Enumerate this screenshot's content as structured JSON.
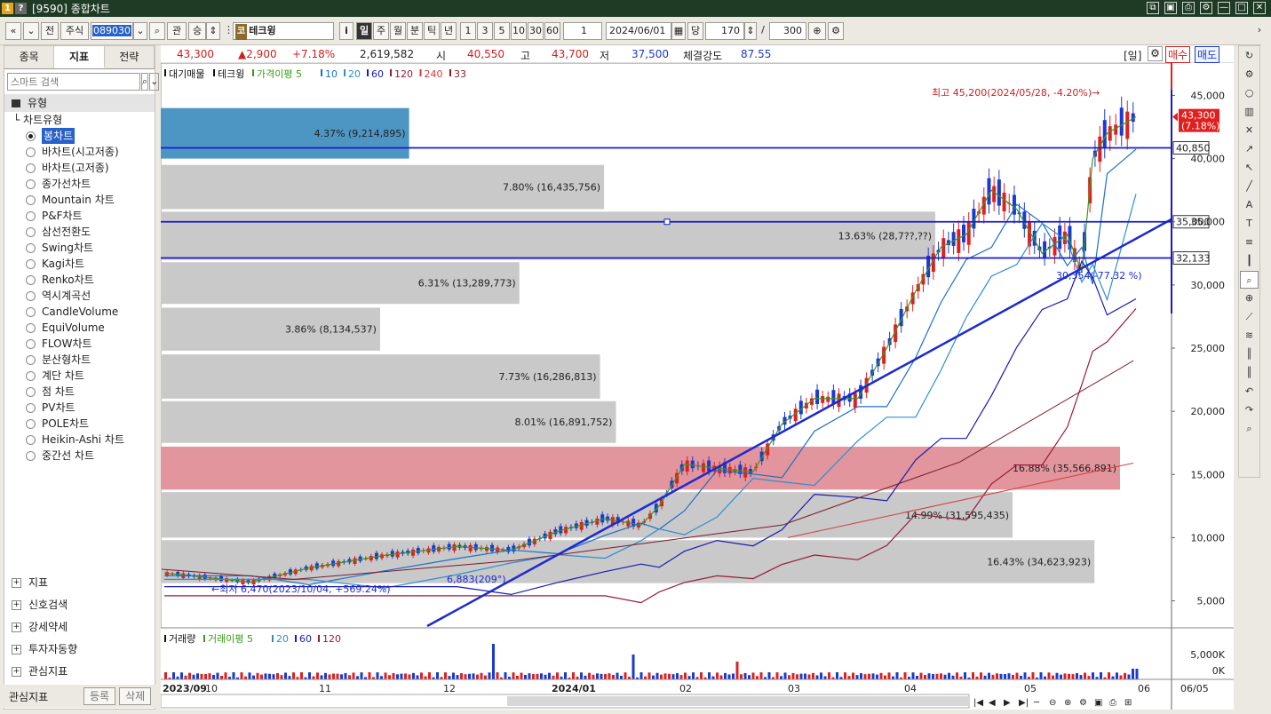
{
  "window": {
    "title": "[9590] 종합차트"
  },
  "toolbar": {
    "back": "전",
    "market": "주식",
    "code": "089030",
    "kwan": "관",
    "seung": "승",
    "stock_name_badge": "코",
    "stock_name": "테크윙",
    "info": "i",
    "periods": [
      "일",
      "주",
      "월",
      "분",
      "틱",
      "년"
    ],
    "active_period": "일",
    "minutes": [
      "1",
      "3",
      "5",
      "10",
      "30",
      "60"
    ],
    "interval": "1",
    "date": "2024/06/01",
    "dang": "당",
    "count": "170",
    "slash": "/",
    "total": "300"
  },
  "left_panel": {
    "tabs": [
      "종목",
      "지표",
      "전략"
    ],
    "active_tab": "지표",
    "search_placeholder": "스마트 검색",
    "section": "유형",
    "tree_root": "차트유형",
    "chart_types": [
      "봉차트",
      "바차트(시고저종)",
      "바차트(고저종)",
      "종가선차트",
      "Mountain 차트",
      "P&F차트",
      "삼선전환도",
      "Swing차트",
      "Kagi차트",
      "Renko차트",
      "역시계곡선",
      "CandleVolume",
      "EquiVolume",
      "FLOW차트",
      "분산형차트",
      "계단 차트",
      "점 차트",
      "PV차트",
      "POLE차트",
      "Heikin-Ashi 차트",
      "중간선 차트"
    ],
    "selected_type": "봉차트",
    "groups": [
      "지표",
      "신호검색",
      "강세약세",
      "투자자동향",
      "관심지표"
    ],
    "footer_label": "관심지표",
    "footer_buttons": [
      "등록",
      "삭제"
    ]
  },
  "price_bar": {
    "price": "43,300",
    "change": "▲2,900",
    "pct": "+7.18%",
    "volume": "2,619,582",
    "open_label": "시",
    "open": "40,550",
    "high_label": "고",
    "high": "43,700",
    "low_label": "저",
    "low": "37,500",
    "strength_label": "체결강도",
    "strength": "87.55",
    "period_tag": "[일]",
    "buy": "매수",
    "sell": "매도"
  },
  "legend": {
    "items": [
      {
        "text": "대기매물",
        "color": "#111111"
      },
      {
        "text": "테크윙",
        "color": "#111111"
      },
      {
        "text": "가격이평 5",
        "color": "#3a9a1a"
      },
      {
        "text": "10",
        "color": "#1a70c8"
      },
      {
        "text": "20",
        "color": "#2d8fd0"
      },
      {
        "text": "60",
        "color": "#1a1ab4"
      },
      {
        "text": "120",
        "color": "#9a1a3a"
      },
      {
        "text": "240",
        "color": "#d43a3a"
      },
      {
        "text": "33",
        "color": "#8a1a1a"
      }
    ]
  },
  "annotations": {
    "high": "최고 45,200(2024/05/28, -4.20%)→",
    "low": "←최저 6,470(2023/10/04, +569.24%)",
    "trend_angle": "6,883(209°)",
    "hline_low": "30,354(-77.32 %)"
  },
  "horizontal_lines": [
    {
      "price": 40850,
      "label": "40,850"
    },
    {
      "price": 35000,
      "label": "35,000"
    },
    {
      "price": 32133,
      "label": "32,133"
    }
  ],
  "current_price_box": {
    "price": "43,300",
    "pct": "(7.18%)"
  },
  "y_ticks": [
    "45,000",
    "40,000",
    "35,000",
    "30,000",
    "25,000",
    "20,000",
    "15,000",
    "10,000",
    "5,000"
  ],
  "volume_panel": {
    "legend": [
      {
        "text": "거래량",
        "color": "#111111"
      },
      {
        "text": "거래이평 5",
        "color": "#3a9a1a"
      },
      {
        "text": "20",
        "color": "#2d8fd0"
      },
      {
        "text": "60",
        "color": "#1a1ab4"
      },
      {
        "text": "120",
        "color": "#9a1a3a"
      }
    ],
    "y_ticks": [
      "5,000K",
      "0K"
    ]
  },
  "x_ticks": [
    "2023/09",
    "10",
    "11",
    "12",
    "2024/01",
    "02",
    "03",
    "04",
    "05",
    "06"
  ],
  "x_end_label": "06/05",
  "chart_data": {
    "type": "volume_profile",
    "volume_profile": [
      {
        "pct": "4.37%",
        "volume": "9,214,895",
        "low": 40000,
        "high": 44000,
        "highlight": "blue"
      },
      {
        "pct": "7.80%",
        "volume": "16,435,756",
        "low": 36000,
        "high": 39500,
        "highlight": "none"
      },
      {
        "pct": "13.63%",
        "volume": "28,7??,??",
        "low": 32000,
        "high": 35800,
        "highlight": "none"
      },
      {
        "pct": "6.31%",
        "volume": "13,289,773",
        "low": 28500,
        "high": 31800,
        "highlight": "none"
      },
      {
        "pct": "3.86%",
        "volume": "8,134,537",
        "low": 24800,
        "high": 28200,
        "highlight": "none"
      },
      {
        "pct": "7.73%",
        "volume": "16,286,813",
        "low": 21000,
        "high": 24500,
        "highlight": "none"
      },
      {
        "pct": "8.01%",
        "volume": "16,891,752",
        "low": 17500,
        "high": 20800,
        "highlight": "none"
      },
      {
        "pct": "16.88%",
        "volume": "35,566,891",
        "low": 13800,
        "high": 17200,
        "highlight": "red"
      },
      {
        "pct": "14.99%",
        "volume": "31,595,435",
        "low": 10000,
        "high": 13600,
        "highlight": "none"
      },
      {
        "pct": "16.43%",
        "volume": "34,623,923",
        "low": 6400,
        "high": 9800,
        "highlight": "none"
      }
    ],
    "close_series": [
      {
        "d": "2023/09/10",
        "c": 7200
      },
      {
        "d": "2023/10/04",
        "c": 6470
      },
      {
        "d": "2023/10/20",
        "c": 7600
      },
      {
        "d": "2023/11/10",
        "c": 8600
      },
      {
        "d": "2023/11/30",
        "c": 9300
      },
      {
        "d": "2023/12/15",
        "c": 9000
      },
      {
        "d": "2023/12/28",
        "c": 10500
      },
      {
        "d": "2024/01/10",
        "c": 11500
      },
      {
        "d": "2024/01/20",
        "c": 11000
      },
      {
        "d": "2024/01/25",
        "c": 12500
      },
      {
        "d": "2024/02/01",
        "c": 15800
      },
      {
        "d": "2024/02/10",
        "c": 15500
      },
      {
        "d": "2024/02/20",
        "c": 15200
      },
      {
        "d": "2024/02/28",
        "c": 19000
      },
      {
        "d": "2024/03/08",
        "c": 21000
      },
      {
        "d": "2024/03/20",
        "c": 21000
      },
      {
        "d": "2024/03/28",
        "c": 25000
      },
      {
        "d": "2024/04/05",
        "c": 29500
      },
      {
        "d": "2024/04/12",
        "c": 33000
      },
      {
        "d": "2024/04/19",
        "c": 34000
      },
      {
        "d": "2024/04/26",
        "c": 37500
      },
      {
        "d": "2024/05/03",
        "c": 36000
      },
      {
        "d": "2024/05/10",
        "c": 32500
      },
      {
        "d": "2024/05/17",
        "c": 34000
      },
      {
        "d": "2024/05/21",
        "c": 31000
      },
      {
        "d": "2024/05/24",
        "c": 40000
      },
      {
        "d": "2024/05/28",
        "c": 42000
      },
      {
        "d": "2024/06/05",
        "c": 43300
      }
    ],
    "ylim": [
      3000,
      47000
    ]
  }
}
